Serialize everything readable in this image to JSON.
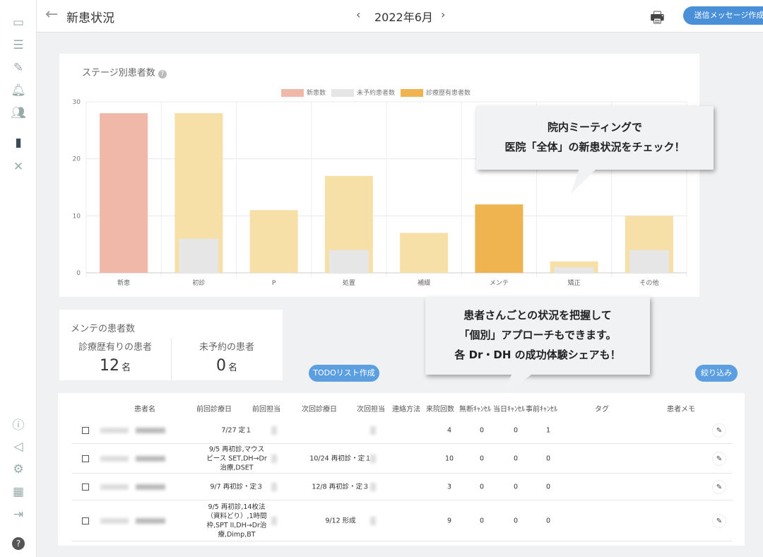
{
  "header": {
    "title": "新患状況",
    "month": "2022年6月",
    "prev": "‹",
    "next": "›",
    "send_button": "送信メッセージ作成",
    "back": "←"
  },
  "sidebar": {
    "icons": [
      "calendar-icon",
      "list-icon",
      "pencil-icon",
      "bell-icon",
      "users-icon",
      "chart-icon",
      "tools-icon",
      "info-icon",
      "megaphone-icon",
      "gear-icon",
      "grid-icon",
      "logout-icon",
      "help-icon"
    ]
  },
  "chart_data": {
    "type": "bar",
    "title": "ステージ別患者数",
    "categories": [
      "新患",
      "初診",
      "P",
      "処置",
      "補綴",
      "メンテ",
      "矯正",
      "その他"
    ],
    "series": [
      {
        "name": "新患数",
        "color": "#f0b8a8",
        "values": [
          28,
          0,
          0,
          0,
          0,
          0,
          0,
          0
        ]
      },
      {
        "name": "未予約患者数",
        "color": "#e6e6e6",
        "values": [
          0,
          6,
          0,
          4,
          0,
          0,
          1,
          4
        ]
      },
      {
        "name": "診療歴有患者数",
        "color": "#efb450",
        "values": [
          0,
          28,
          11,
          17,
          7,
          12,
          2,
          10
        ]
      }
    ],
    "light_color": "#f7e0a8",
    "ylim": [
      0,
      30
    ],
    "yticks": [
      0,
      10,
      20,
      30
    ],
    "grid": true,
    "legend": "top-center"
  },
  "callouts": {
    "one": [
      "院内ミーティングで",
      "医院「全体」の新患状況をチェック！"
    ],
    "two": [
      "患者さんごとの状況を把握して",
      "「個別」アプローチもできます。",
      "各 Dr・DH の成功体験シェアも！"
    ]
  },
  "maint": {
    "title": "メンテの患者数",
    "with_history_label": "診療歴有りの患者",
    "with_history": "12",
    "unbooked_label": "未予約の患者",
    "unbooked": "0",
    "unit": "名"
  },
  "buttons": {
    "todo": "TODOリスト作成",
    "filter": "絞り込み"
  },
  "table": {
    "headers": [
      "患者名",
      "前回診療日",
      "前回担当",
      "次回診療日",
      "次回担当",
      "連絡方法",
      "来院回数",
      "無断ｷｬﾝｾﾙ",
      "当日ｷｬﾝｾﾙ",
      "事前ｷｬﾝｾﾙ",
      "タグ",
      "患者メモ"
    ],
    "rows": [
      {
        "prev": "7/27 定１",
        "next": "",
        "visits": "4",
        "noshow": "0",
        "sameday": "0",
        "advance": "1"
      },
      {
        "prev": "9/5 再初診,マウスピース SET,DH→Dr治療,DSET",
        "next": "10/24 再初診・定１",
        "visits": "10",
        "noshow": "0",
        "sameday": "0",
        "advance": "0"
      },
      {
        "prev": "9/7 再初診・定３",
        "next": "12/8 再初診・定３",
        "visits": "3",
        "noshow": "0",
        "sameday": "0",
        "advance": "0"
      },
      {
        "prev": "9/5 再初診,14枚法（資料どり）,1時間枠,SPT II,DH→Dr治療,Dimp,BT",
        "next": "9/12 形成",
        "visits": "9",
        "noshow": "0",
        "sameday": "0",
        "advance": "0"
      }
    ]
  }
}
